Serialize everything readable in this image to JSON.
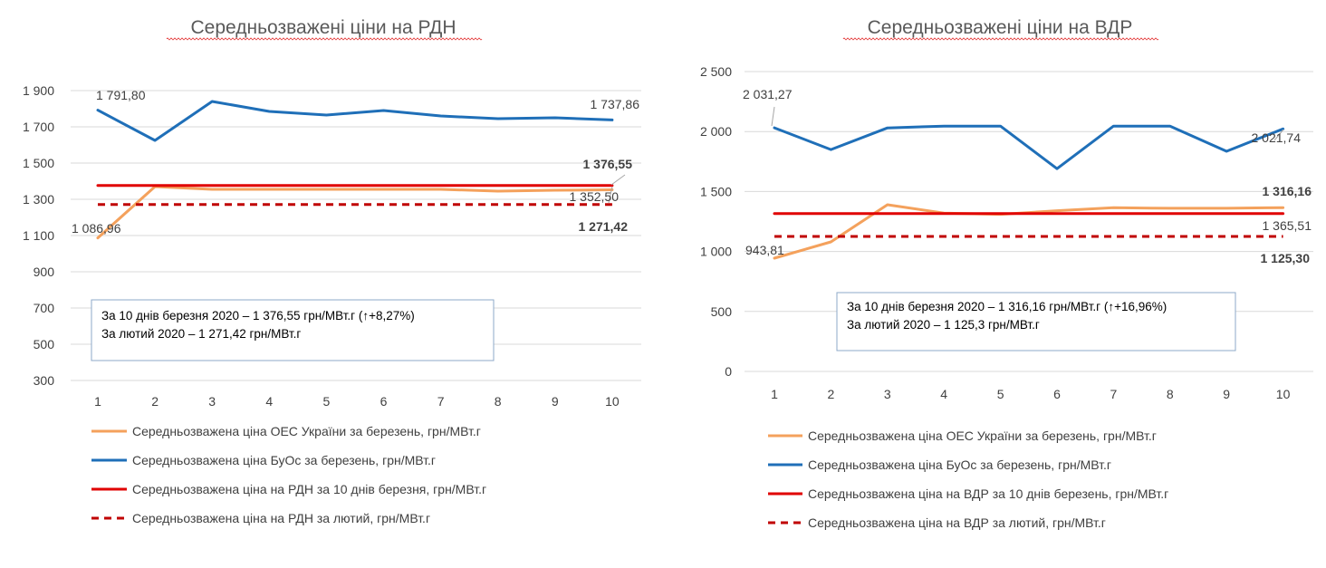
{
  "colors": {
    "orange": "#F4A15C",
    "blue": "#1F6FB8",
    "red": "#E00000",
    "darkred": "#C00000",
    "grid": "#D9D9D9",
    "notebox": "#8EA9C8"
  },
  "chart_data": [
    {
      "type": "line",
      "title": "Середньозважені ціни на РДН",
      "x": [
        1,
        2,
        3,
        4,
        5,
        6,
        7,
        8,
        9,
        10
      ],
      "ylim": [
        300,
        1900
      ],
      "yticks": [
        "1 900",
        "1 700",
        "1 500",
        "1 300",
        "1 100",
        "900",
        "700",
        "500",
        "300"
      ],
      "ytick_values": [
        1900,
        1700,
        1500,
        1300,
        1100,
        900,
        700,
        500,
        300
      ],
      "grid": true,
      "legend_position": "bottom",
      "series": [
        {
          "name": "Середньозважена ціна ОЕС України за березень, грн/МВт.г",
          "color": "orange",
          "dash": false,
          "values": [
            1086.96,
            1370,
            1355,
            1355,
            1355,
            1355,
            1355,
            1345,
            1350,
            1352.5
          ]
        },
        {
          "name": "Середньозважена ціна БуОс за березень, грн/МВт.г",
          "color": "blue",
          "dash": false,
          "values": [
            1791.8,
            1625,
            1840,
            1785,
            1765,
            1790,
            1760,
            1745,
            1750,
            1737.86
          ]
        },
        {
          "name": "Середньозважена ціна на РДН за 10 днів березня, грн/МВт.г",
          "color": "red",
          "dash": false,
          "values": [
            1376.55,
            1376.55,
            1376.55,
            1376.55,
            1376.55,
            1376.55,
            1376.55,
            1376.55,
            1376.55,
            1376.55
          ]
        },
        {
          "name": "Середньозважена ціна на РДН за лютий, грн/МВт.г",
          "color": "darkred",
          "dash": true,
          "values": [
            1271.42,
            1271.42,
            1271.42,
            1271.42,
            1271.42,
            1271.42,
            1271.42,
            1271.42,
            1271.42,
            1271.42
          ]
        }
      ],
      "data_labels": [
        {
          "text": "1 791,80",
          "bold": false
        },
        {
          "text": "1 737,86",
          "bold": false
        },
        {
          "text": "1 376,55",
          "bold": true
        },
        {
          "text": "1 352,50",
          "bold": false
        },
        {
          "text": "1 086,96",
          "bold": false
        },
        {
          "text": "1 271,42",
          "bold": true
        }
      ],
      "note": [
        "За 10 днів березня 2020 – 1 376,55 грн/МВт.г (↑+8,27%)",
        "За лютий 2020 – 1 271,42 грн/МВт.г"
      ]
    },
    {
      "type": "line",
      "title": "Середньозважені ціни на ВДР",
      "x": [
        1,
        2,
        3,
        4,
        5,
        6,
        7,
        8,
        9,
        10
      ],
      "ylim": [
        0,
        2500
      ],
      "yticks": [
        "2 500",
        "2 000",
        "1 500",
        "1 000",
        "500",
        "0"
      ],
      "ytick_values": [
        2500,
        2000,
        1500,
        1000,
        500,
        0
      ],
      "grid": true,
      "legend_position": "bottom",
      "series": [
        {
          "name": "Середньозважена ціна ОЕС України за березень, грн/МВт.г",
          "color": "orange",
          "dash": false,
          "values": [
            943.81,
            1080,
            1390,
            1320,
            1310,
            1340,
            1365,
            1360,
            1360,
            1365.51
          ]
        },
        {
          "name": "Середньозважена ціна БуОс за березень, грн/МВт.г",
          "color": "blue",
          "dash": false,
          "values": [
            2031.27,
            1850,
            2030,
            2045,
            2045,
            1690,
            2045,
            2045,
            1835,
            2021.74
          ]
        },
        {
          "name": "Середньозважена ціна на ВДР за 10 днів березень, грн/МВт.г",
          "color": "red",
          "dash": false,
          "values": [
            1316.16,
            1316.16,
            1316.16,
            1316.16,
            1316.16,
            1316.16,
            1316.16,
            1316.16,
            1316.16,
            1316.16
          ]
        },
        {
          "name": "Середньозважена ціна на ВДР за лютий, грн/МВт.г",
          "color": "darkred",
          "dash": true,
          "values": [
            1125.3,
            1125.3,
            1125.3,
            1125.3,
            1125.3,
            1125.3,
            1125.3,
            1125.3,
            1125.3,
            1125.3
          ]
        }
      ],
      "data_labels": [
        {
          "text": "2 031,27",
          "bold": false
        },
        {
          "text": "2 021,74",
          "bold": false
        },
        {
          "text": "1 316,16",
          "bold": true
        },
        {
          "text": "1 365,51",
          "bold": false
        },
        {
          "text": "943,81",
          "bold": false
        },
        {
          "text": "1 125,30",
          "bold": true
        }
      ],
      "note": [
        "За 10 днів березня 2020 – 1 316,16 грн/МВт.г (↑+16,96%)",
        "За лютий 2020 – 1 125,3 грн/МВт.г"
      ]
    }
  ]
}
